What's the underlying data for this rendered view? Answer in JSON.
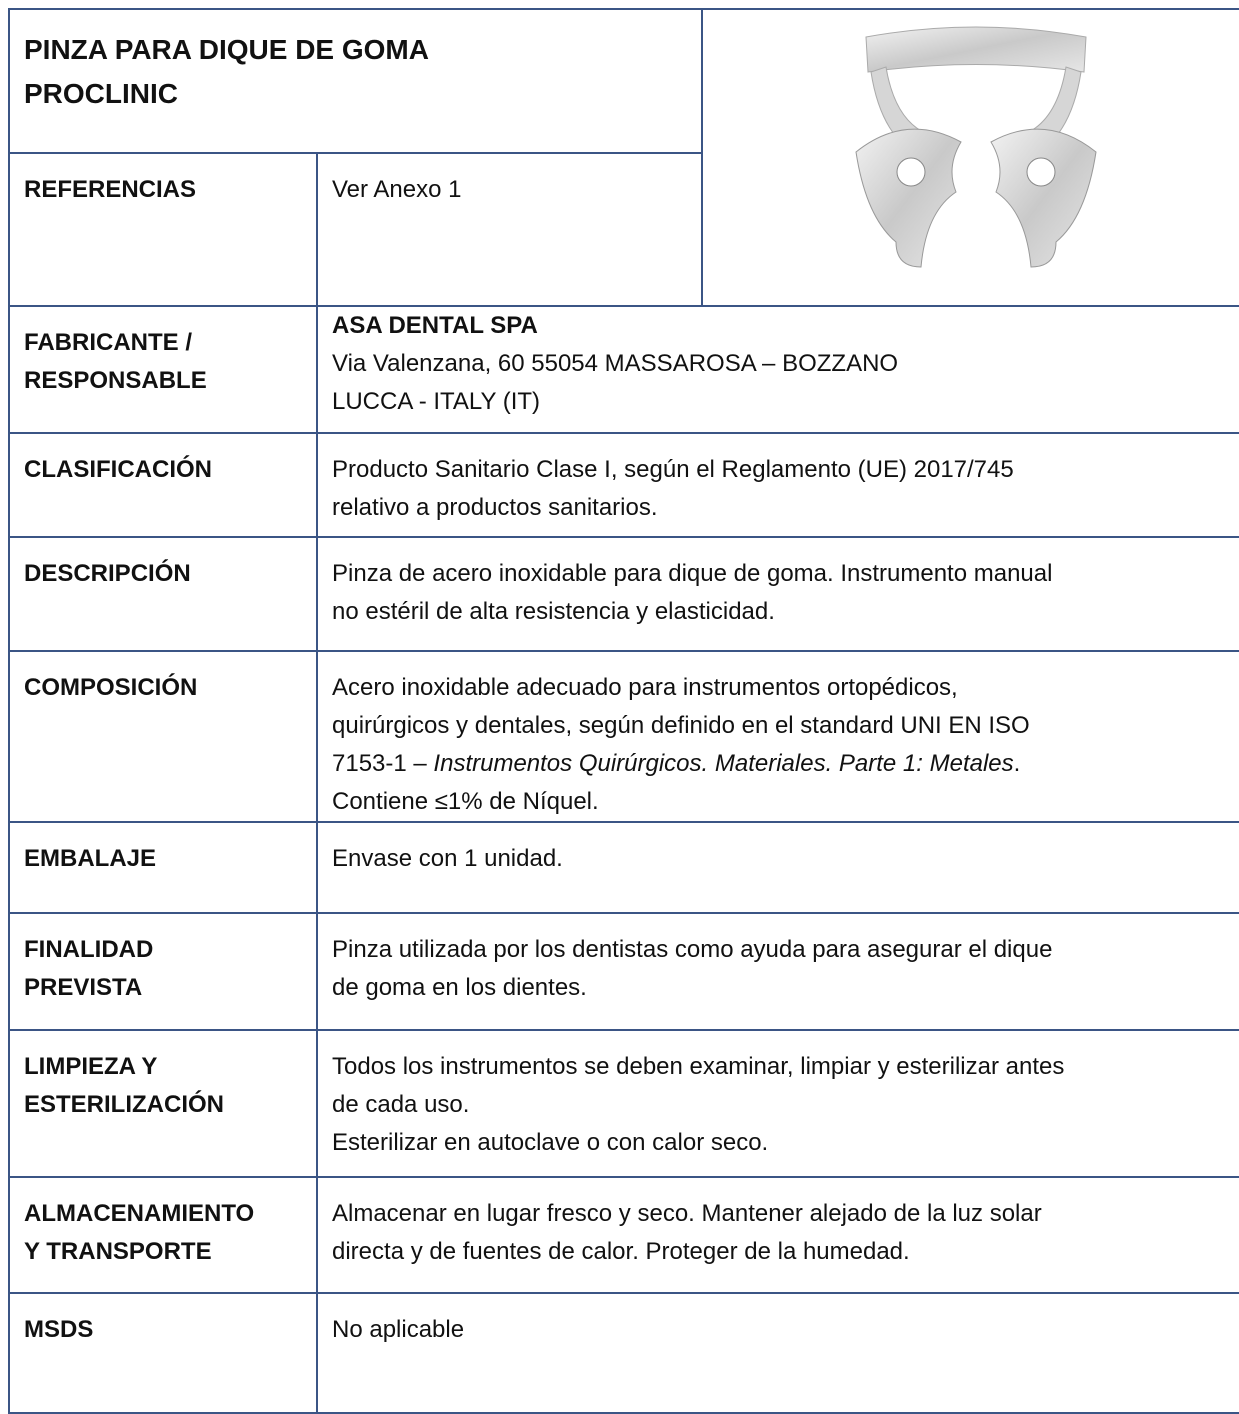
{
  "header": {
    "title_lines": [
      "PINZA PARA DIQUE DE GOMA",
      "PROCLINIC"
    ]
  },
  "rows": [
    {
      "label": [
        "REFERENCIAS"
      ],
      "value": [
        "Ver Anexo 1"
      ]
    },
    {
      "label": [
        "FABRICANTE /",
        "RESPONSABLE"
      ],
      "value_heading": "ASA DENTAL SPA",
      "value": [
        "Via Valenzana, 60 55054 MASSAROSA – BOZZANO",
        "LUCCA - ITALY (IT)"
      ]
    },
    {
      "label": [
        "CLASIFICACIÓN"
      ],
      "value": [
        "Producto Sanitario Clase I, según el Reglamento (UE) 2017/745",
        "relativo a productos sanitarios."
      ]
    },
    {
      "label": [
        "DESCRIPCIÓN"
      ],
      "value": [
        "Pinza de acero inoxidable para dique de goma. Instrumento manual",
        "no estéril de alta resistencia y elasticidad."
      ]
    },
    {
      "label": [
        "COMPOSICIÓN"
      ],
      "value": [
        "Acero inoxidable adecuado para instrumentos ortopédicos,",
        "quirúrgicos y dentales, según definido en el standard UNI EN ISO",
        [
          "7153-1 – ",
          "Instrumentos Quirúrgicos. Materiales. Parte 1: Metales",
          "."
        ],
        "Contiene ≤1% de Níquel."
      ]
    },
    {
      "label": [
        "EMBALAJE"
      ],
      "value": [
        "Envase con 1 unidad."
      ]
    },
    {
      "label": [
        "FINALIDAD",
        "PREVISTA"
      ],
      "value": [
        "Pinza utilizada por los dentistas como ayuda para asegurar el dique",
        "de goma en los dientes."
      ]
    },
    {
      "label": [
        "LIMPIEZA Y",
        "ESTERILIZACIÓN"
      ],
      "value": [
        "Todos los instrumentos se deben examinar, limpiar y esterilizar antes",
        "de cada uso.",
        "Esterilizar en autoclave o con calor seco."
      ]
    },
    {
      "label": [
        "ALMACENAMIENTO",
        "Y TRANSPORTE"
      ],
      "value": [
        "Almacenar en lugar fresco y seco. Mantener alejado de la luz solar",
        "directa y de fuentes de calor. Proteger de la humedad."
      ]
    },
    {
      "label": [
        "MSDS"
      ],
      "value": [
        "No aplicable"
      ]
    }
  ]
}
